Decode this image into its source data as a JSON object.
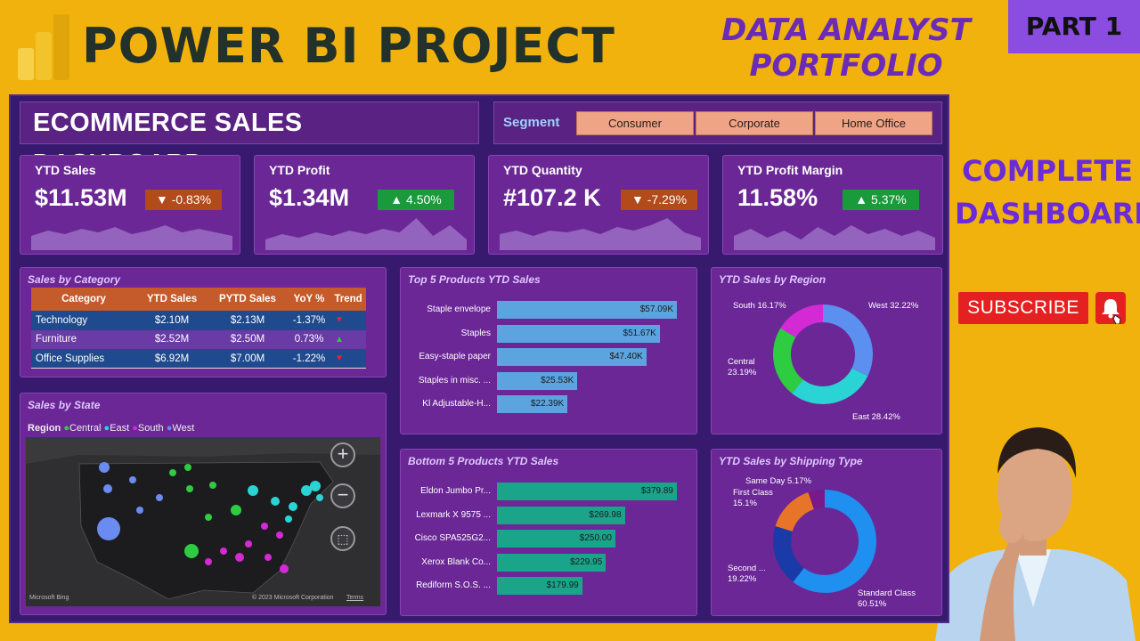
{
  "banner": {
    "title": "POWER BI PROJECT",
    "subtitle_line1": "DATA ANALYST",
    "subtitle_line2": "PORTFOLIO",
    "part": "PART 1",
    "complete_line1": "COMPLETE",
    "complete_line2": "DASHBOARD",
    "subscribe": "SUBSCRIBE"
  },
  "dashboard": {
    "title": "ECOMMERCE SALES DASHBOARD",
    "segment": {
      "label": "Segment",
      "options": [
        "Consumer",
        "Corporate",
        "Home Office"
      ]
    },
    "kpis": [
      {
        "title": "YTD Sales",
        "value": "$11.53M",
        "change": "-0.83%",
        "direction": "down",
        "spark": [
          0.4,
          0.55,
          0.45,
          0.6,
          0.5,
          0.65,
          0.45,
          0.55,
          0.7,
          0.5,
          0.6,
          0.5,
          0.4
        ]
      },
      {
        "title": "YTD Profit",
        "value": "$1.34M",
        "change": "4.50%",
        "direction": "up",
        "spark": [
          0.3,
          0.45,
          0.35,
          0.5,
          0.4,
          0.55,
          0.45,
          0.6,
          0.5,
          0.9,
          0.4,
          0.7,
          0.3
        ]
      },
      {
        "title": "YTD Quantity",
        "value": "#107.2 K",
        "change": "-7.29%",
        "direction": "down",
        "spark": [
          0.45,
          0.55,
          0.4,
          0.55,
          0.5,
          0.6,
          0.45,
          0.65,
          0.55,
          0.7,
          0.9,
          0.5,
          0.35
        ]
      },
      {
        "title": "YTD Profit Margin",
        "value": "11.58%",
        "change": "5.37%",
        "direction": "up",
        "spark": [
          0.4,
          0.6,
          0.35,
          0.55,
          0.3,
          0.65,
          0.4,
          0.7,
          0.45,
          0.6,
          0.4,
          0.55,
          0.35
        ]
      }
    ],
    "category": {
      "title": "Sales by Category",
      "headers": [
        "Category",
        "YTD Sales",
        "PYTD Sales",
        "YoY %",
        "Trend"
      ],
      "rows": [
        {
          "category": "Technology",
          "ytd": "$2.10M",
          "pytd": "$2.13M",
          "yoy": "-1.37%",
          "trend": "down"
        },
        {
          "category": "Furniture",
          "ytd": "$2.52M",
          "pytd": "$2.50M",
          "yoy": "0.73%",
          "trend": "up"
        },
        {
          "category": "Office Supplies",
          "ytd": "$6.92M",
          "pytd": "$7.00M",
          "yoy": "-1.22%",
          "trend": "down"
        }
      ]
    },
    "map": {
      "title": "Sales by State",
      "legend_label": "Region",
      "regions": [
        {
          "name": "Central",
          "color": "#2ecc40"
        },
        {
          "name": "East",
          "color": "#2ad4d4"
        },
        {
          "name": "South",
          "color": "#d42ad4"
        },
        {
          "name": "West",
          "color": "#6a8cf0"
        }
      ],
      "footer_left": "Microsoft Bing",
      "footer_right": "© 2023 Microsoft Corporation",
      "terms": "Terms"
    },
    "top5": {
      "title": "Top 5 Products YTD Sales",
      "color": "#5ba4e0",
      "max": 57.09,
      "items": [
        {
          "name": "Staple envelope",
          "value": 57.09,
          "label": "$57.09K"
        },
        {
          "name": "Staples",
          "value": 51.67,
          "label": "$51.67K"
        },
        {
          "name": "Easy-staple paper",
          "value": 47.4,
          "label": "$47.40K"
        },
        {
          "name": "Staples in misc. ...",
          "value": 25.53,
          "label": "$25.53K"
        },
        {
          "name": "Kl Adjustable-H...",
          "value": 22.39,
          "label": "$22.39K"
        }
      ]
    },
    "bottom5": {
      "title": "Bottom 5 Products YTD Sales",
      "color": "#1aa58a",
      "max": 379.89,
      "items": [
        {
          "name": "Eldon Jumbo Pr...",
          "value": 379.89,
          "label": "$379.89"
        },
        {
          "name": "Lexmark X 9575 ...",
          "value": 269.98,
          "label": "$269.98"
        },
        {
          "name": "Cisco SPA525G2...",
          "value": 250.0,
          "label": "$250.00"
        },
        {
          "name": "Xerox Blank Co...",
          "value": 229.95,
          "label": "$229.95"
        },
        {
          "name": "Rediform S.O.S. ...",
          "value": 179.99,
          "label": "$179.99"
        }
      ]
    },
    "region_donut": {
      "title": "YTD Sales by Region",
      "slices": [
        {
          "name": "West",
          "label": "West 32.22%",
          "value": 32.22,
          "color": "#5b8ff0"
        },
        {
          "name": "East",
          "label": "East 28.42%",
          "value": 28.42,
          "color": "#2ad4d4"
        },
        {
          "name": "Central",
          "label": "Central 23.19%",
          "value": 23.19,
          "color": "#2ecc40"
        },
        {
          "name": "South",
          "label": "South 16.17%",
          "value": 16.17,
          "color": "#d42ad4"
        }
      ]
    },
    "ship_donut": {
      "title": "YTD Sales by Shipping Type",
      "slices": [
        {
          "name": "Standard Class",
          "label": "Standard Class 60.51%",
          "value": 60.51,
          "color": "#1f8ff0"
        },
        {
          "name": "Second ...",
          "label": "Second ... 19.22%",
          "value": 19.22,
          "color": "#1a3aa8"
        },
        {
          "name": "First Class",
          "label": "First Class 15.1%",
          "value": 15.1,
          "color": "#e8742a"
        },
        {
          "name": "Same Day",
          "label": "Same Day 5.17%",
          "value": 5.17,
          "color": "#7a1a8a"
        }
      ]
    }
  }
}
